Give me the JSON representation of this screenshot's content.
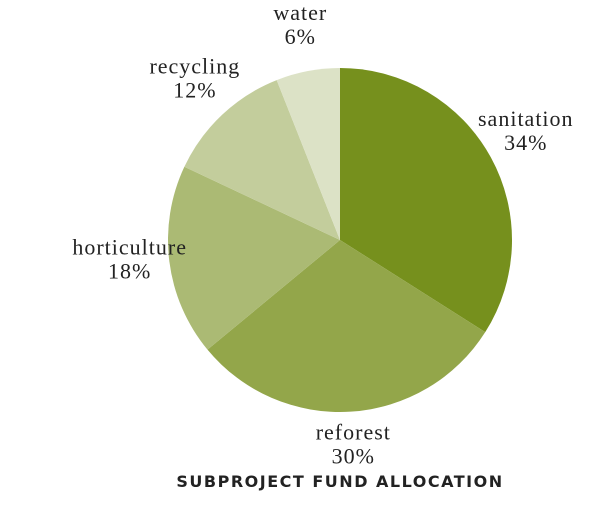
{
  "chart_data": {
    "type": "pie",
    "title": "SUBPROJECT FUND ALLOCATION",
    "categories": [
      "sanitation",
      "reforest",
      "horticulture",
      "recycling",
      "water"
    ],
    "values": [
      34,
      30,
      18,
      12,
      6
    ],
    "value_labels": [
      "34%",
      "30%",
      "18%",
      "12%",
      "6%"
    ],
    "colors": [
      "#76901d",
      "#93a64a",
      "#abba74",
      "#c3cd9c",
      "#dce2c6"
    ]
  }
}
